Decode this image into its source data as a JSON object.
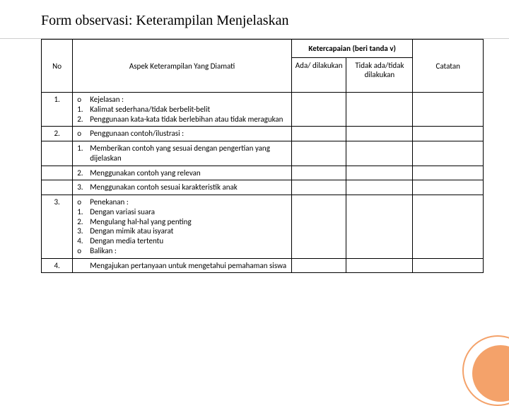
{
  "title": "Form observasi: Keterampilan Menjelaskan",
  "headers": {
    "no": "No",
    "aspek": "Aspek Keterampilan Yang Diamati",
    "ketercapaian": "Ketercapaian (beri tanda v)",
    "ada": "Ada/ dilakukan",
    "tidak": "Tidak ada/tidak dilakukan",
    "catatan": "Catatan"
  },
  "rows": [
    {
      "no": "1.",
      "lines": [
        {
          "marker": "o",
          "text": "Kejelasan :"
        },
        {
          "marker": "1.",
          "text": "Kalimat sederhana/tidak berbelit-belit"
        },
        {
          "marker": "2.",
          "text": "Penggunaan kata-kata tidak berlebihan atau tidak meragukan"
        }
      ]
    },
    {
      "no": "2.",
      "lines": [
        {
          "marker": "o",
          "text": "Penggunaan contoh/ilustrasi :"
        }
      ]
    },
    {
      "no": "",
      "lines": [
        {
          "marker": "1.",
          "text": "Memberikan contoh yang sesuai dengan pengertian yang dijelaskan"
        }
      ]
    },
    {
      "no": "",
      "lines": [
        {
          "marker": "2.",
          "text": "Menggunakan contoh yang relevan"
        }
      ]
    },
    {
      "no": "",
      "lines": [
        {
          "marker": "3.",
          "text": "Menggunakan contoh sesuai karakteristik anak"
        }
      ]
    },
    {
      "no": "3.",
      "lines": [
        {
          "marker": "o",
          "text": "Penekanan :"
        },
        {
          "marker": "1.",
          "text": "Dengan variasi suara"
        },
        {
          "marker": "2.",
          "text": "Mengulang hal-hal yang penting"
        },
        {
          "marker": "3.",
          "text": "Dengan mimik atau isyarat"
        },
        {
          "marker": "4.",
          "text": "Dengan media tertentu"
        },
        {
          "marker": "o",
          "text": "Balikan :"
        }
      ]
    },
    {
      "no": "4.",
      "lines": [
        {
          "marker": "",
          "text": "Mengajukan pertanyaan untuk mengetahui pemahaman siswa"
        }
      ]
    }
  ],
  "style": {
    "accent": "#f4a26a",
    "border": "#000000",
    "title_fontsize": 20,
    "body_fontsize": 11
  }
}
